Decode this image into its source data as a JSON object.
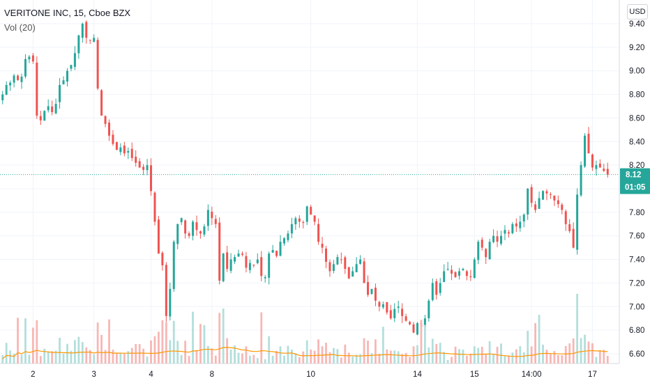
{
  "header": {
    "title": "VERITONE INC, 15, Cboe BZX",
    "indicator": "Vol (20)",
    "currency": "USD"
  },
  "last": {
    "price_label": "8.12",
    "countdown": "01:05"
  },
  "colors": {
    "up": "#26a69a",
    "down": "#ef5350",
    "up_vol": "#b2dfdb",
    "down_vol": "#f7b7b5",
    "ma": "#ff9800",
    "grid": "#f0f3fa",
    "axis_text": "#131722",
    "last_tag": "#26a69a"
  },
  "chart_data": {
    "type": "candlestick",
    "title": "VERITONE INC, 15, Cboe BZX",
    "ylim": [
      6.55,
      9.45
    ],
    "yticks": [
      "9.40",
      "9.20",
      "9.00",
      "8.80",
      "8.60",
      "8.40",
      "8.20",
      "8.00",
      "7.80",
      "7.60",
      "7.40",
      "7.20",
      "7.00",
      "6.80",
      "6.60"
    ],
    "xtick_labels": [
      "2",
      "3",
      "4",
      "8",
      "10",
      "14",
      "15",
      "14:00",
      "17"
    ],
    "xtick_positions": [
      8,
      24,
      39,
      55,
      81,
      109,
      124,
      139,
      155
    ],
    "last_price": 8.12,
    "close": [
      8.8,
      8.88,
      8.9,
      8.96,
      8.92,
      8.95,
      9.1,
      9.12,
      9.08,
      8.62,
      8.58,
      8.66,
      8.7,
      8.65,
      8.72,
      8.88,
      8.92,
      9.0,
      9.05,
      9.15,
      9.3,
      9.4,
      9.28,
      9.26,
      9.28,
      8.85,
      8.62,
      8.55,
      8.45,
      8.38,
      8.33,
      8.35,
      8.3,
      8.32,
      8.26,
      8.22,
      8.18,
      8.16,
      8.2,
      7.98,
      7.72,
      7.45,
      7.35,
      6.92,
      7.15,
      7.55,
      7.7,
      7.75,
      7.62,
      7.6,
      7.72,
      7.65,
      7.62,
      7.68,
      7.82,
      7.75,
      7.7,
      7.22,
      7.45,
      7.32,
      7.4,
      7.42,
      7.45,
      7.44,
      7.33,
      7.37,
      7.35,
      7.4,
      7.26,
      7.25,
      7.45,
      7.48,
      7.43,
      7.55,
      7.58,
      7.62,
      7.7,
      7.75,
      7.72,
      7.71,
      7.85,
      7.78,
      7.72,
      7.55,
      7.5,
      7.38,
      7.3,
      7.36,
      7.42,
      7.4,
      7.32,
      7.24,
      7.3,
      7.36,
      7.4,
      7.2,
      7.1,
      7.15,
      7.05,
      7.0,
      7.02,
      6.95,
      6.9,
      6.98,
      7.0,
      6.92,
      6.88,
      6.85,
      6.78,
      6.86,
      6.83,
      6.9,
      7.05,
      7.2,
      7.1,
      7.2,
      7.3,
      7.32,
      7.28,
      7.25,
      7.3,
      7.32,
      7.26,
      7.25,
      7.4,
      7.55,
      7.5,
      7.42,
      7.55,
      7.6,
      7.55,
      7.6,
      7.65,
      7.62,
      7.7,
      7.68,
      7.72,
      7.78,
      8.0,
      7.88,
      7.82,
      7.92,
      7.98,
      7.96,
      7.95,
      7.9,
      7.87,
      7.82,
      7.7,
      7.64,
      7.5,
      7.95,
      8.2,
      8.45,
      8.3,
      8.18,
      8.2,
      8.18,
      8.15,
      8.12
    ],
    "volume_ma_note": "Vol (20)"
  }
}
